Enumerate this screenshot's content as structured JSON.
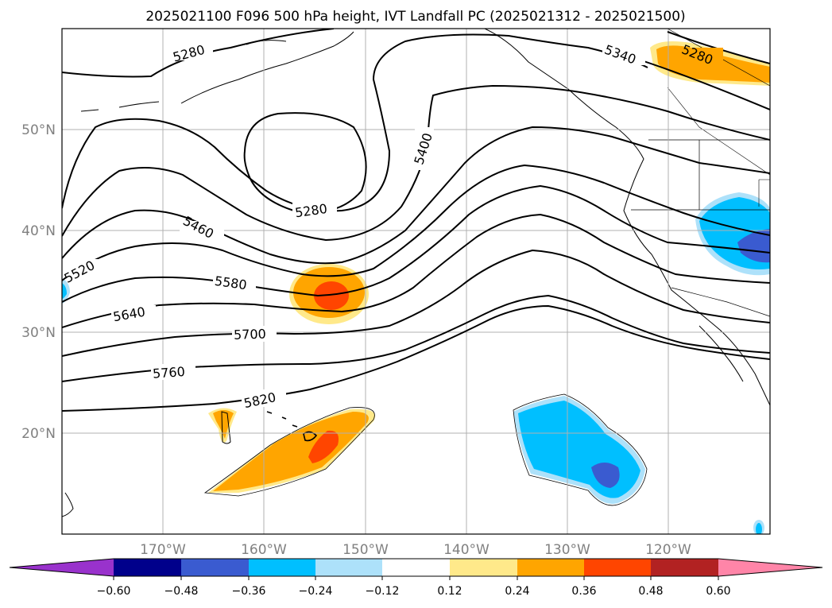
{
  "title": "2025021100 F096 500 hPa height, IVT Landfall PC (2025021312 - 2025021500)",
  "lat_labels": [
    "50°N",
    "40°N",
    "30°N",
    "20°N"
  ],
  "lon_labels": [
    "170°W",
    "160°W",
    "150°W",
    "140°W",
    "130°W",
    "120°W"
  ],
  "colorbar": {
    "ticks": [
      "−0.60",
      "−0.48",
      "−0.36",
      "−0.24",
      "−0.12",
      "0.12",
      "0.24",
      "0.36",
      "0.48",
      "0.60"
    ],
    "colors": [
      "#9932CC",
      "#00008B",
      "#3A5BD0",
      "#00BFFF",
      "#ADE1FA",
      "#FFFFFF",
      "#FFE98A",
      "#FFA500",
      "#FF4500",
      "#B22222",
      "#FF85A8"
    ]
  },
  "contour_labels": [
    "5280",
    "5280",
    "5280",
    "5340",
    "5400",
    "5460",
    "5520",
    "5580",
    "5640",
    "5700",
    "5760",
    "5820"
  ]
}
